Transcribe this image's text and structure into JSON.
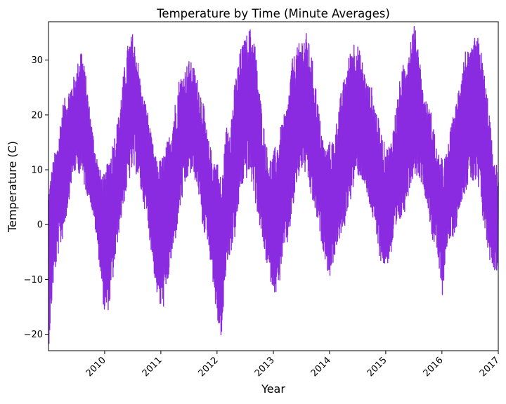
{
  "chart_data": {
    "type": "line",
    "title": "Temperature by Time (Minute Averages)",
    "xlabel": "Year",
    "ylabel": "Temperature (C)",
    "x_ticks": [
      "2010",
      "2011",
      "2012",
      "2013",
      "2014",
      "2015",
      "2016",
      "2017"
    ],
    "y_ticks": [
      -20,
      -10,
      0,
      10,
      20,
      30
    ],
    "xlim": [
      "2009-01-01",
      "2017-01-01"
    ],
    "ylim": [
      -23,
      37
    ],
    "grid": false,
    "legend": "none",
    "line_color": "#8a2be2",
    "series": [
      {
        "envelope": {
          "x": [
            "2009-01-01",
            "2009-02-01",
            "2009-03-01",
            "2009-04-01",
            "2009-05-01",
            "2009-06-01",
            "2009-07-01",
            "2009-08-01",
            "2009-09-01",
            "2009-10-01",
            "2009-11-01",
            "2009-12-01",
            "2010-01-01",
            "2010-02-01",
            "2010-03-01",
            "2010-04-01",
            "2010-05-01",
            "2010-06-01",
            "2010-07-01",
            "2010-08-01",
            "2010-09-01",
            "2010-10-01",
            "2010-11-01",
            "2010-12-01",
            "2011-01-01",
            "2011-02-01",
            "2011-03-01",
            "2011-04-01",
            "2011-05-01",
            "2011-06-01",
            "2011-07-01",
            "2011-08-01",
            "2011-09-01",
            "2011-10-01",
            "2011-11-01",
            "2011-12-01",
            "2012-01-01",
            "2012-02-01",
            "2012-03-01",
            "2012-04-01",
            "2012-05-01",
            "2012-06-01",
            "2012-07-01",
            "2012-08-01",
            "2012-09-01",
            "2012-10-01",
            "2012-11-01",
            "2012-12-01",
            "2013-01-01",
            "2013-02-01",
            "2013-03-01",
            "2013-04-01",
            "2013-05-01",
            "2013-06-01",
            "2013-07-01",
            "2013-08-01",
            "2013-09-01",
            "2013-10-01",
            "2013-11-01",
            "2013-12-01",
            "2014-01-01",
            "2014-02-01",
            "2014-03-01",
            "2014-04-01",
            "2014-05-01",
            "2014-06-01",
            "2014-07-01",
            "2014-08-01",
            "2014-09-01",
            "2014-10-01",
            "2014-11-01",
            "2014-12-01",
            "2015-01-01",
            "2015-02-01",
            "2015-03-01",
            "2015-04-01",
            "2015-05-01",
            "2015-06-01",
            "2015-07-01",
            "2015-08-01",
            "2015-09-01",
            "2015-10-01",
            "2015-11-01",
            "2015-12-01",
            "2016-01-01",
            "2016-02-01",
            "2016-03-01",
            "2016-04-01",
            "2016-05-01",
            "2016-06-01",
            "2016-07-01",
            "2016-08-01",
            "2016-09-01",
            "2016-10-01",
            "2016-11-01",
            "2016-12-01",
            "2017-01-01"
          ],
          "min": [
            -23,
            -11,
            -6,
            -3,
            2,
            8,
            10,
            9,
            6,
            4,
            -1,
            -8,
            -17,
            -15,
            -9,
            -2,
            3,
            7,
            10,
            9,
            5,
            1,
            -5,
            -12,
            -16,
            -14,
            -8,
            -4,
            2,
            6,
            9,
            9,
            6,
            -1,
            -3,
            -9,
            -18,
            -21,
            -8,
            -5,
            -2,
            6,
            8,
            9,
            5,
            0,
            -5,
            -9,
            -12,
            -13,
            -6,
            -4,
            1,
            7,
            10,
            9,
            5,
            2,
            -2,
            -6,
            -10,
            -6,
            -3,
            -2,
            3,
            6,
            9,
            8,
            5,
            2,
            -3,
            -7,
            -8,
            -6,
            -3,
            0,
            2,
            6,
            9,
            9,
            7,
            3,
            -3,
            -5,
            -14,
            -4,
            -3,
            -1,
            4,
            6,
            8,
            7,
            5,
            -1,
            -6,
            -8,
            -9
          ],
          "max": [
            7,
            12,
            15,
            22,
            24,
            26,
            28,
            33,
            27,
            20,
            14,
            10,
            9,
            13,
            16,
            20,
            27,
            33,
            35,
            31,
            24,
            22,
            16,
            12,
            12,
            14,
            17,
            22,
            27,
            28,
            30,
            29,
            26,
            23,
            16,
            13,
            12,
            8,
            18,
            20,
            27,
            32,
            34,
            36,
            34,
            25,
            18,
            12,
            13,
            16,
            19,
            22,
            30,
            32,
            34,
            35,
            32,
            26,
            19,
            14,
            15,
            16,
            22,
            26,
            30,
            34,
            33,
            30,
            26,
            25,
            21,
            17,
            14,
            15,
            20,
            26,
            30,
            33,
            37,
            33,
            24,
            22,
            20,
            13,
            12,
            13,
            18,
            22,
            28,
            32,
            31,
            34,
            34,
            28,
            22,
            11,
            11
          ]
        }
      }
    ]
  }
}
